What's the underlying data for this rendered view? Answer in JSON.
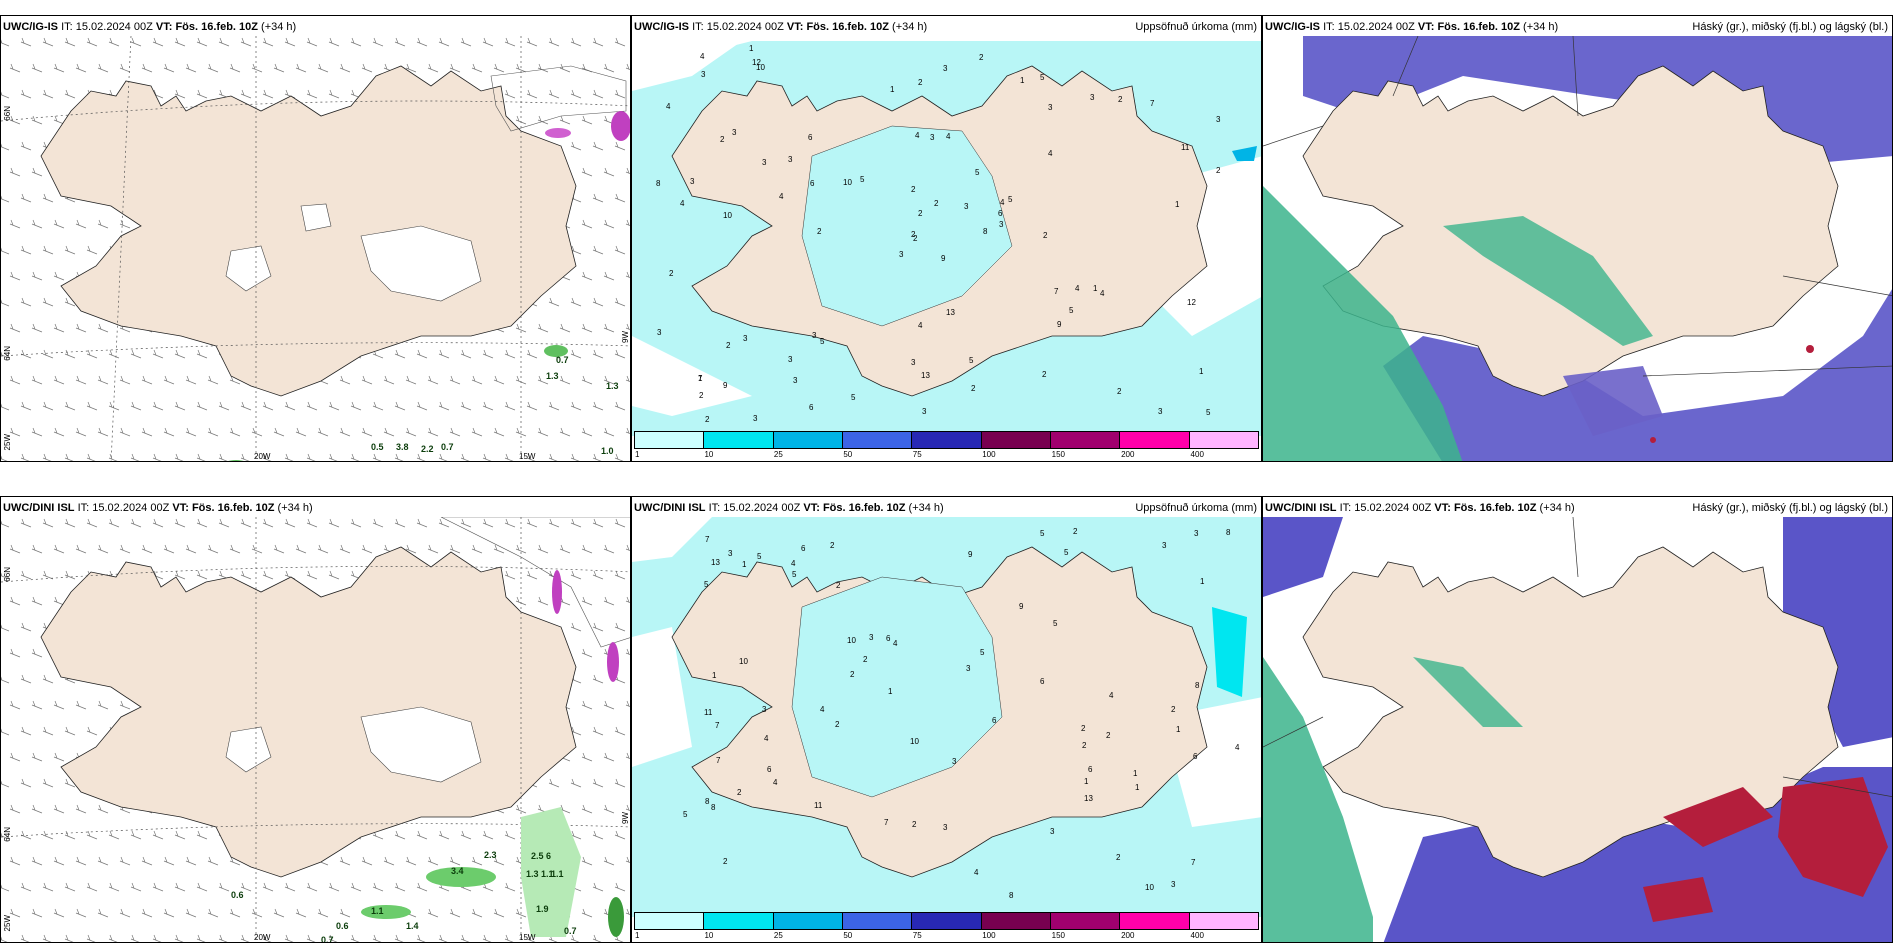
{
  "info": {
    "it_label": "IT:",
    "it_value": "15.02.2024 00Z",
    "vt_label": "VT:",
    "vt_value": "Fös. 16.feb. 10Z",
    "lead": "(+34 h)"
  },
  "rows": [
    {
      "model": "UWC/IG-IS"
    },
    {
      "model": "UWC/DINI ISL"
    }
  ],
  "titles": {
    "precip": "Uppsöfnuð úrkoma (mm)",
    "clouds": "Háský (gr.), miðský (fj.bl.) og lágský (bl.)"
  },
  "axes": {
    "lat66": "66N",
    "lat64": "64N",
    "lon20": "20W",
    "lon15": "15W",
    "lon25": "25W",
    "lon9": "9W"
  },
  "colorbar": {
    "labels": [
      "1",
      "10",
      "25",
      "50",
      "75",
      "100",
      "150",
      "200",
      "400"
    ],
    "colors": [
      "#ccffff",
      "#00e6f0",
      "#00b4e6",
      "#3c64e6",
      "#2828b4",
      "#780050",
      "#a0006e",
      "#ff00aa",
      "#ffb4ff"
    ]
  },
  "colors": {
    "land": "#f3e4d6",
    "light_precip": "#b8f6f6",
    "high_cloud": "#3cb48c",
    "mid_cloud": "#5050c8",
    "low_cloud": "#b41e3c"
  },
  "wind_panel_numbers": {
    "top": [
      "0.7",
      "1.3",
      "1.3",
      "0.5",
      "3.8",
      "2.2",
      "0.7",
      "1.0"
    ],
    "bottom": [
      "0.6",
      "0.7",
      "0.6",
      "1.1",
      "1.4",
      "3.4",
      "2.3",
      "2.5",
      "6",
      "1.3",
      "1.1",
      "1.1",
      "1.9",
      "0.7"
    ]
  },
  "precip_numbers": {
    "top": [
      "9",
      "2",
      "2",
      "7",
      "4",
      "5",
      "5",
      "4",
      "3",
      "8",
      "10",
      "5",
      "10",
      "3",
      "3",
      "4",
      "3",
      "4",
      "5",
      "3",
      "5",
      "2",
      "3",
      "3",
      "5",
      "4",
      "3",
      "2",
      "4",
      "7",
      "2",
      "2",
      "3",
      "2",
      "6",
      "3",
      "3",
      "3",
      "1",
      "1",
      "2",
      "10",
      "4",
      "9",
      "6",
      "8",
      "6",
      "2",
      "13",
      "3",
      "2",
      "11",
      "4",
      "5",
      "2",
      "3",
      "12",
      "4",
      "5",
      "7",
      "3",
      "2",
      "3",
      "3",
      "2",
      "1",
      "1",
      "1",
      "2",
      "3",
      "4",
      "5",
      "4",
      "6",
      "1",
      "3",
      "3",
      "2",
      "2",
      "2",
      "3",
      "9",
      "2",
      "12",
      "3",
      "1",
      "13",
      "2"
    ],
    "bottom": [
      "2",
      "1",
      "2",
      "6",
      "4",
      "2",
      "8",
      "5",
      "10",
      "8",
      "5",
      "11",
      "13",
      "7",
      "7",
      "8",
      "3",
      "6",
      "6",
      "4",
      "8",
      "3",
      "2",
      "6",
      "5",
      "4",
      "6",
      "7",
      "5",
      "4",
      "4",
      "3",
      "2",
      "2",
      "2",
      "1",
      "1",
      "3",
      "3",
      "2",
      "1",
      "2",
      "3",
      "2",
      "1",
      "11",
      "5",
      "3",
      "6",
      "1",
      "4",
      "3",
      "3",
      "2",
      "13",
      "10",
      "5",
      "7",
      "4",
      "5",
      "2",
      "2",
      "5",
      "7",
      "9",
      "10",
      "10",
      "6",
      "4",
      "8",
      "9",
      "2",
      "1",
      "1",
      "3"
    ]
  }
}
